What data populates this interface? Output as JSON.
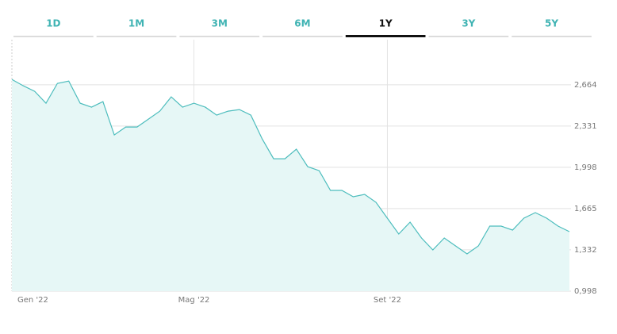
{
  "tabs": {
    "labels": [
      "1D",
      "1M",
      "3M",
      "6M",
      "1Y",
      "3Y",
      "5Y"
    ],
    "active": "1Y"
  },
  "chart_data": {
    "type": "area",
    "categories": [
      "Gen '22",
      null,
      null,
      null,
      null,
      null,
      null,
      null,
      null,
      null,
      null,
      null,
      null,
      null,
      null,
      null,
      "Mag '22",
      null,
      null,
      null,
      null,
      null,
      null,
      null,
      null,
      null,
      null,
      null,
      null,
      null,
      null,
      null,
      null,
      "Set '22",
      null,
      null,
      null,
      null,
      null,
      null,
      null,
      null,
      null,
      null,
      null,
      null,
      null,
      null,
      null,
      null
    ],
    "values": [
      2.707,
      2.656,
      2.611,
      2.515,
      2.675,
      2.694,
      2.515,
      2.483,
      2.528,
      2.259,
      2.323,
      2.323,
      2.387,
      2.451,
      2.566,
      2.483,
      2.515,
      2.483,
      2.419,
      2.451,
      2.464,
      2.419,
      2.227,
      2.067,
      2.067,
      2.144,
      2.003,
      1.971,
      1.811,
      1.811,
      1.76,
      1.779,
      1.715,
      1.587,
      1.459,
      1.555,
      1.427,
      1.331,
      1.427,
      1.363,
      1.299,
      1.363,
      1.523,
      1.523,
      1.491,
      1.587,
      1.632,
      1.587,
      1.523,
      1.478
    ],
    "color": "#4dbdbd",
    "fill": "#e6f7f6",
    "ylim": [
      0.998,
      3.028
    ],
    "yticks": [
      {
        "value": 0.998,
        "label": "0,998"
      },
      {
        "value": 1.332,
        "label": "1,332"
      },
      {
        "value": 1.665,
        "label": "1,665"
      },
      {
        "value": 1.998,
        "label": "1,998"
      },
      {
        "value": 2.331,
        "label": "2,331"
      },
      {
        "value": 2.664,
        "label": "2,664"
      }
    ],
    "grid": true
  }
}
